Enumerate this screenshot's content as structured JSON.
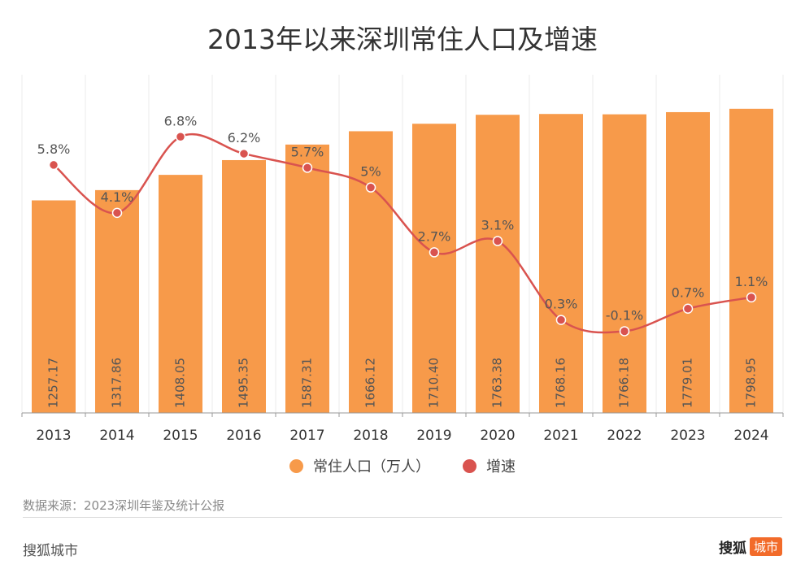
{
  "title": "2013年以来深圳常住人口及增速",
  "chart_data": {
    "type": "bar",
    "categories": [
      "2013",
      "2014",
      "2015",
      "2016",
      "2017",
      "2018",
      "2019",
      "2020",
      "2021",
      "2022",
      "2023",
      "2024"
    ],
    "series": [
      {
        "name": "常住人口（万人）",
        "type": "bar",
        "color": "#f79a4a",
        "values": [
          1257.17,
          1317.86,
          1408.05,
          1495.35,
          1587.31,
          1666.12,
          1710.4,
          1763.38,
          1768.16,
          1766.18,
          1779.01,
          1798.95
        ],
        "labels": [
          "1257.17",
          "1317.86",
          "1408.05",
          "1495.35",
          "1587.31",
          "1666.12",
          "1710.40",
          "1763.38",
          "1768.16",
          "1766.18",
          "1779.01",
          "1798.95"
        ]
      },
      {
        "name": "增速",
        "type": "line",
        "color": "#d9534f",
        "values": [
          5.8,
          4.1,
          6.8,
          6.2,
          5.7,
          5,
          2.7,
          3.1,
          0.3,
          -0.1,
          0.7,
          1.1
        ],
        "labels": [
          "5.8%",
          "4.1%",
          "6.8%",
          "6.2%",
          "5.7%",
          "5%",
          "2.7%",
          "3.1%",
          "0.3%",
          "-0.1%",
          "0.7%",
          "1.1%"
        ]
      }
    ],
    "ylim_bar": [
      0,
      2000
    ],
    "ylim_line": [
      -3,
      9
    ],
    "grid": "vertical",
    "legend_position": "bottom"
  },
  "source": "数据来源：2023深圳年鉴及统计公报",
  "footer": {
    "brand": "搜狐城市",
    "logo_text": "搜狐",
    "logo_badge": "城市"
  }
}
